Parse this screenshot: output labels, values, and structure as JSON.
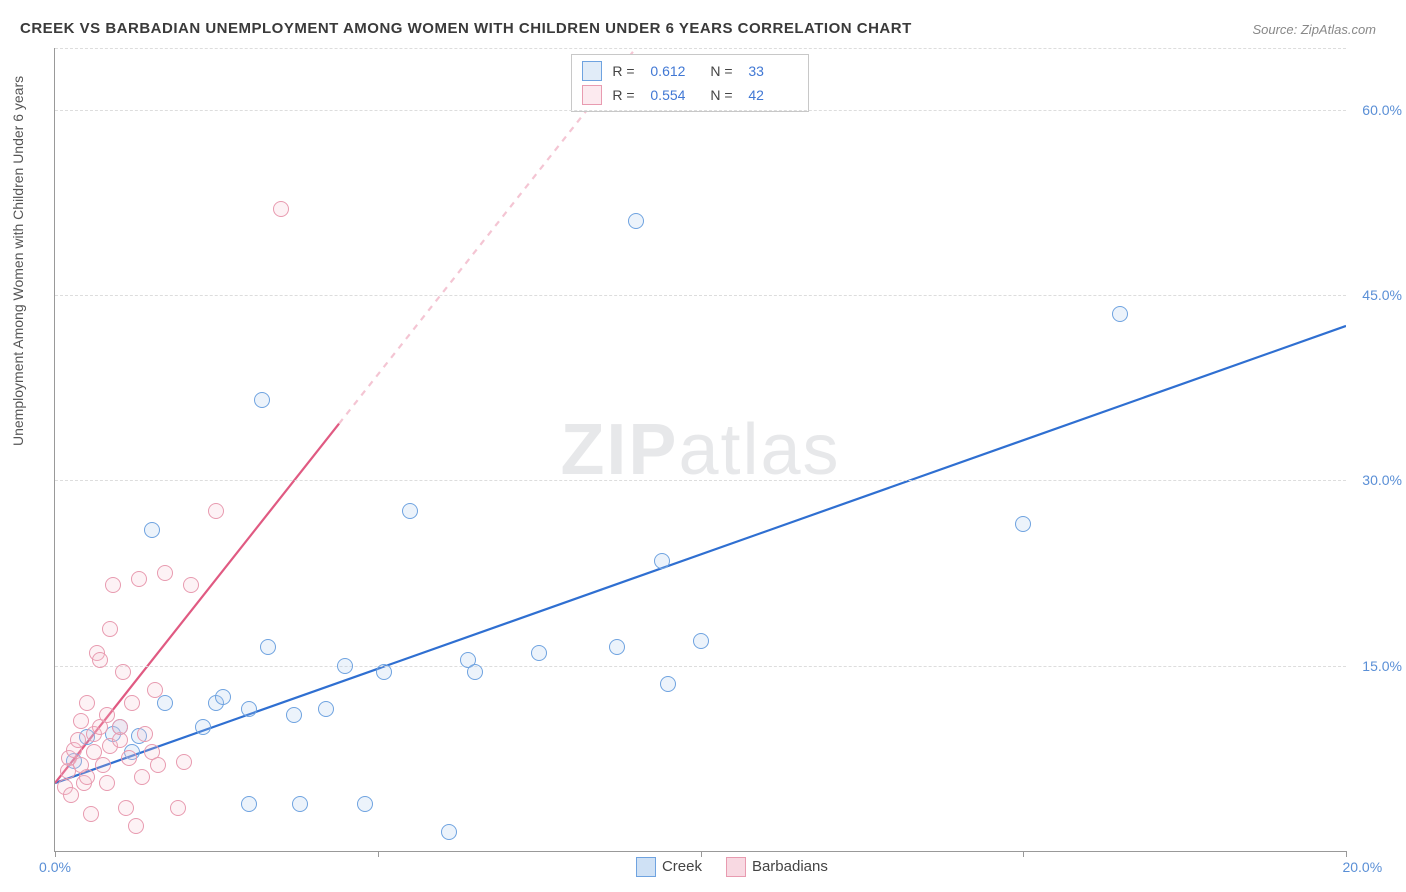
{
  "title": "CREEK VS BARBADIAN UNEMPLOYMENT AMONG WOMEN WITH CHILDREN UNDER 6 YEARS CORRELATION CHART",
  "source": "Source: ZipAtlas.com",
  "y_axis_label": "Unemployment Among Women with Children Under 6 years",
  "watermark": {
    "part1": "ZIP",
    "part2": "atlas"
  },
  "chart": {
    "type": "scatter",
    "background_color": "#ffffff",
    "grid_color": "#dddddd",
    "axis_color": "#999999",
    "x_range": [
      0,
      20
    ],
    "y_range": [
      0,
      65
    ],
    "x_ticks": [
      0,
      5,
      10,
      15,
      20
    ],
    "x_tick_labels": {
      "0": "0.0%",
      "20": "20.0%"
    },
    "y_ticks": [
      15,
      30,
      45,
      60
    ],
    "y_tick_labels": {
      "15": "15.0%",
      "30": "30.0%",
      "45": "45.0%",
      "60": "60.0%"
    },
    "marker_radius": 8,
    "marker_border_width": 1.5,
    "marker_fill_opacity": 0.22,
    "series": [
      {
        "name": "Creek",
        "color_border": "#6fa3e0",
        "color_fill": "#a9c8ec",
        "R": "0.612",
        "N": "33",
        "trend": {
          "x1": 0,
          "y1": 5.5,
          "x2": 20,
          "y2": 42.5,
          "width": 2.2,
          "color": "#2f6fd1",
          "dashed_after_x": null
        },
        "points": [
          [
            0.3,
            7.3
          ],
          [
            0.5,
            9.2
          ],
          [
            0.9,
            9.5
          ],
          [
            1.0,
            10.0
          ],
          [
            1.2,
            8.0
          ],
          [
            1.3,
            9.3
          ],
          [
            1.5,
            26.0
          ],
          [
            1.7,
            12.0
          ],
          [
            2.3,
            10.0
          ],
          [
            2.5,
            12.0
          ],
          [
            2.6,
            12.5
          ],
          [
            3.0,
            11.5
          ],
          [
            3.0,
            3.8
          ],
          [
            3.2,
            36.5
          ],
          [
            3.3,
            16.5
          ],
          [
            3.7,
            11.0
          ],
          [
            3.8,
            3.8
          ],
          [
            4.2,
            11.5
          ],
          [
            4.5,
            15.0
          ],
          [
            4.8,
            3.8
          ],
          [
            5.1,
            14.5
          ],
          [
            5.5,
            27.5
          ],
          [
            6.1,
            1.5
          ],
          [
            6.4,
            15.5
          ],
          [
            6.5,
            14.5
          ],
          [
            7.5,
            16.0
          ],
          [
            8.7,
            16.5
          ],
          [
            9.0,
            51.0
          ],
          [
            9.4,
            23.5
          ],
          [
            9.5,
            13.5
          ],
          [
            10.0,
            17.0
          ],
          [
            15.0,
            26.5
          ],
          [
            16.5,
            43.5
          ]
        ]
      },
      {
        "name": "Barbadians",
        "color_border": "#e89bb0",
        "color_fill": "#f5c4d1",
        "R": "0.554",
        "N": "42",
        "trend": {
          "x1": 0,
          "y1": 5.5,
          "x2": 9.0,
          "y2": 65,
          "width": 2.2,
          "color": "#e05a82",
          "dashed_after_x": 4.4
        },
        "points": [
          [
            0.15,
            5.2
          ],
          [
            0.2,
            6.5
          ],
          [
            0.22,
            7.5
          ],
          [
            0.25,
            4.5
          ],
          [
            0.3,
            8.2
          ],
          [
            0.35,
            9.0
          ],
          [
            0.4,
            7.0
          ],
          [
            0.4,
            10.5
          ],
          [
            0.45,
            5.5
          ],
          [
            0.5,
            6.0
          ],
          [
            0.5,
            12.0
          ],
          [
            0.55,
            3.0
          ],
          [
            0.6,
            8.0
          ],
          [
            0.6,
            9.5
          ],
          [
            0.65,
            16.0
          ],
          [
            0.7,
            10.0
          ],
          [
            0.7,
            15.5
          ],
          [
            0.75,
            7.0
          ],
          [
            0.8,
            5.5
          ],
          [
            0.8,
            11.0
          ],
          [
            0.85,
            18.0
          ],
          [
            0.85,
            8.5
          ],
          [
            0.9,
            21.5
          ],
          [
            1.0,
            9.0
          ],
          [
            1.0,
            10.0
          ],
          [
            1.05,
            14.5
          ],
          [
            1.1,
            3.5
          ],
          [
            1.15,
            7.5
          ],
          [
            1.2,
            12.0
          ],
          [
            1.25,
            2.0
          ],
          [
            1.3,
            22.0
          ],
          [
            1.35,
            6.0
          ],
          [
            1.4,
            9.5
          ],
          [
            1.5,
            8.0
          ],
          [
            1.55,
            13.0
          ],
          [
            1.6,
            7.0
          ],
          [
            1.7,
            22.5
          ],
          [
            1.9,
            3.5
          ],
          [
            2.0,
            7.2
          ],
          [
            2.1,
            21.5
          ],
          [
            2.5,
            27.5
          ],
          [
            3.5,
            52.0
          ]
        ]
      }
    ]
  },
  "legend_bottom": [
    {
      "label": "Creek",
      "border": "#6fa3e0",
      "fill": "#cfe1f5"
    },
    {
      "label": "Barbadians",
      "border": "#e89bb0",
      "fill": "#f8d9e2"
    }
  ]
}
